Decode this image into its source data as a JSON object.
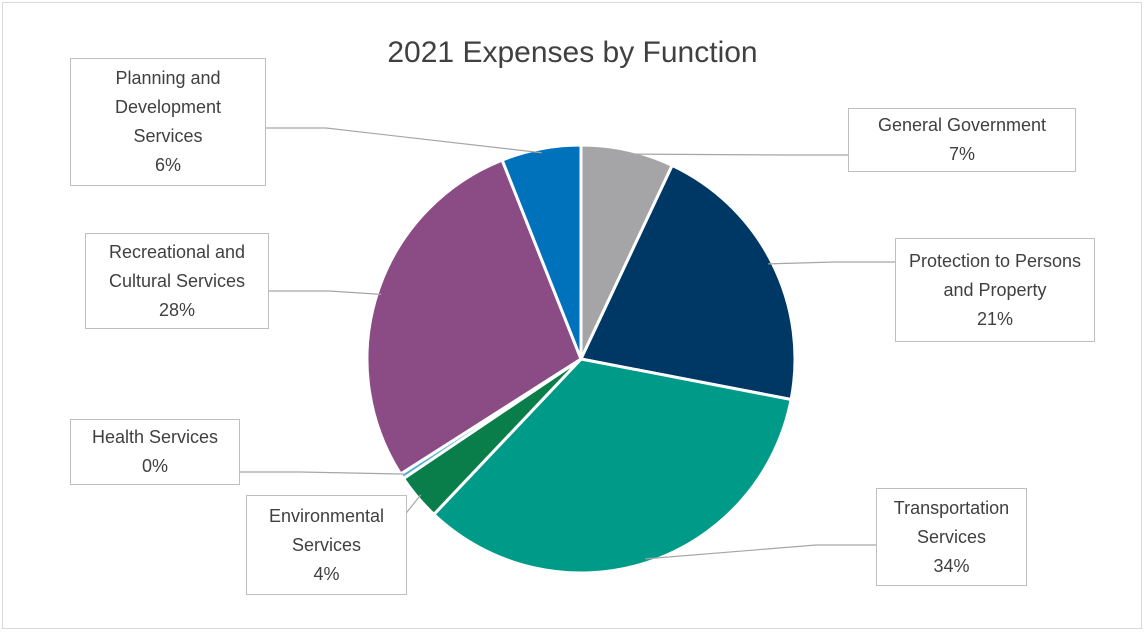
{
  "chart_data": {
    "type": "pie",
    "title": "2021 Expenses by Function",
    "slices": [
      {
        "label": "General Government",
        "value": 7,
        "value_label": "7%",
        "color": "#a5a5a8"
      },
      {
        "label": "Protection to Persons and Property",
        "value": 21,
        "value_label": "21%",
        "color": "#003865"
      },
      {
        "label": "Transportation Services",
        "value": 34,
        "value_label": "34%",
        "color": "#009a89"
      },
      {
        "label": "Environmental Services",
        "value": 3.5,
        "value_label": "4%",
        "color": "#0a7e4a"
      },
      {
        "label": "Health Services",
        "value": 0.4,
        "value_label": "0%",
        "color": "#4fb3cf"
      },
      {
        "label": "Recreational and Cultural Services",
        "value": 28,
        "value_label": "28%",
        "color": "#8b4c86"
      },
      {
        "label": "Planning and Development Services",
        "value": 6,
        "value_label": "6%",
        "color": "#0072bc"
      }
    ],
    "data_labels": "outside-with-leader-lines",
    "start": "12 o'clock, clockwise"
  }
}
